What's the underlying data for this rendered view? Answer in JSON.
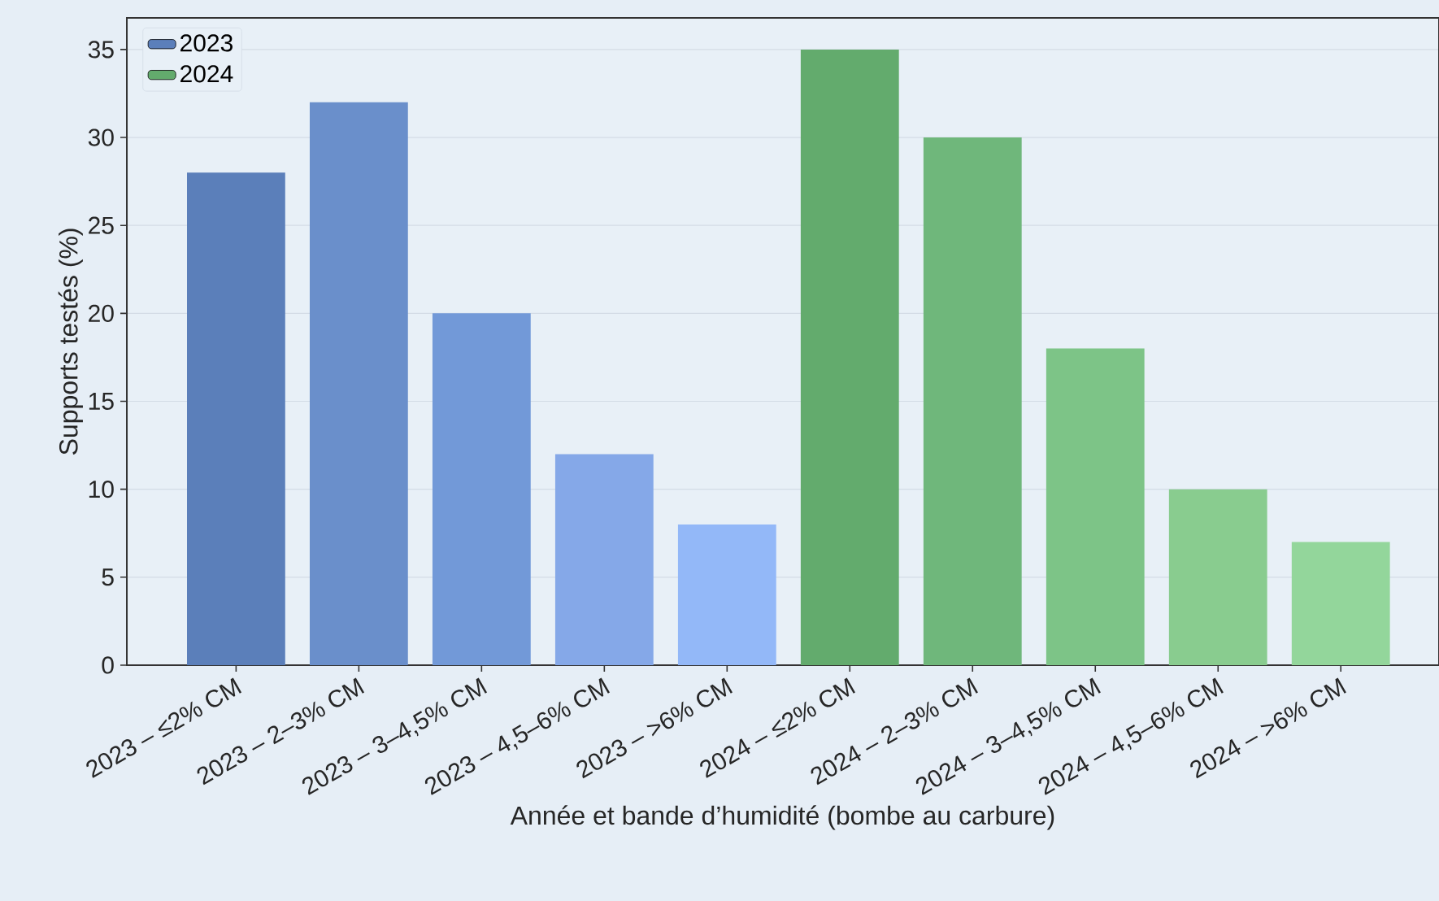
{
  "chart_data": {
    "type": "bar",
    "xlabel": "Année et bande d’humidité (bombe au carbure)",
    "ylabel": "Supports testés (%)",
    "categories": [
      "2023 – ≤2% CM",
      "2023 – 2–3% CM",
      "2023 – 3–4,5% CM",
      "2023 – 4,5–6% CM",
      "2023 – >6% CM",
      "2024 – ≤2% CM",
      "2024 – 2–3% CM",
      "2024 – 3–4,5% CM",
      "2024 – 4,5–6% CM",
      "2024 – >6% CM"
    ],
    "series": [
      {
        "name": "2023",
        "color": "#5b7fba",
        "values": [
          28,
          32,
          20,
          12,
          8,
          null,
          null,
          null,
          null,
          null
        ],
        "colors": [
          "#5b7fba",
          "#6a8fcb",
          "#7299d8",
          "#85a8e8",
          "#93b8f8",
          null,
          null,
          null,
          null,
          null
        ]
      },
      {
        "name": "2024",
        "color": "#63ab6d",
        "values": [
          null,
          null,
          null,
          null,
          null,
          35,
          30,
          18,
          10,
          7
        ],
        "colors": [
          null,
          null,
          null,
          null,
          null,
          "#63ab6d",
          "#6fb77b",
          "#7dc487",
          "#89cc8f",
          "#93d69b"
        ]
      }
    ],
    "ylim": [
      0,
      36.8
    ],
    "yticks": [
      0,
      5,
      10,
      15,
      20,
      25,
      30,
      35
    ],
    "grid": "y",
    "legend": "top left"
  }
}
